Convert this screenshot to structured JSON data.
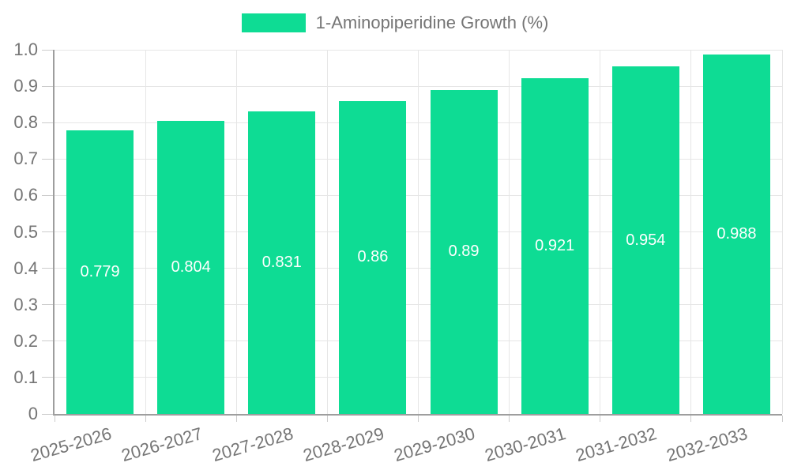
{
  "colors": {
    "bar": "#0edc94",
    "grid": "#e6e6e6",
    "axis_line": "#9e9e9e",
    "tick": "#cccccc",
    "axis_text": "#757575",
    "legend_text": "#757575",
    "value_text": "#ffffff",
    "background": "#ffffff"
  },
  "chart_data": {
    "type": "bar",
    "title": "1-Aminopiperidine Growth (%)",
    "legend": [
      "1-Aminopiperidine Growth (%)"
    ],
    "legend_position": "top",
    "categories": [
      "2025-2026",
      "2026-2027",
      "2027-2028",
      "2028-2029",
      "2029-2030",
      "2030-2031",
      "2031-2032",
      "2032-2033"
    ],
    "values": [
      0.779,
      0.804,
      0.831,
      0.86,
      0.89,
      0.921,
      0.954,
      0.988
    ],
    "value_labels": [
      "0.779",
      "0.804",
      "0.831",
      "0.86",
      "0.89",
      "0.921",
      "0.954",
      "0.988"
    ],
    "xlabel": "",
    "ylabel": "",
    "ylim": [
      0,
      1.0
    ],
    "y_tick_labels": [
      "0",
      "0.1",
      "0.2",
      "0.3",
      "0.4",
      "0.5",
      "0.6",
      "0.7",
      "0.8",
      "0.9",
      "1.0"
    ],
    "grid": true,
    "x_label_rotation_deg": -16
  }
}
